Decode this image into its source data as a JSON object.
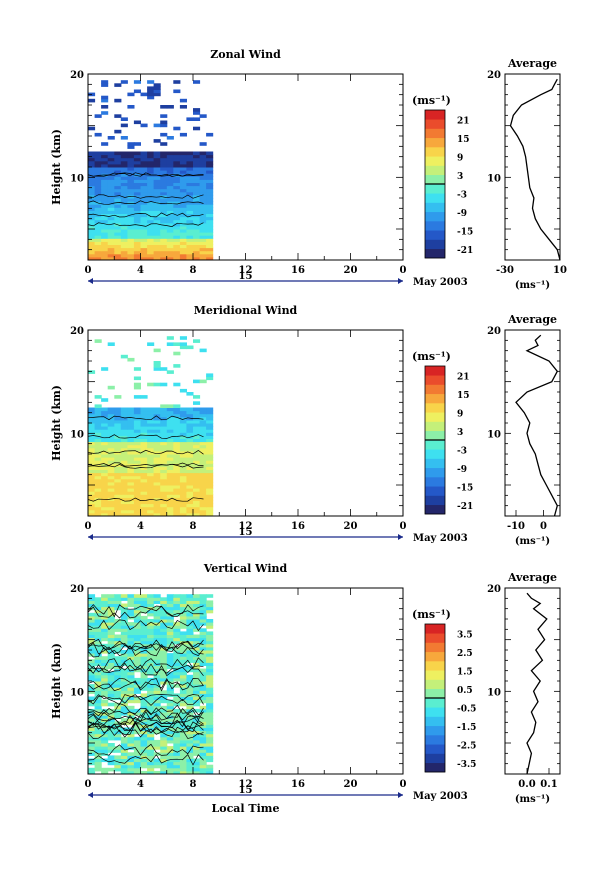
{
  "chart_data": [
    {
      "type": "heatmap",
      "title": "Zonal Wind",
      "ylabel": "Height (km)",
      "xlim": [
        0,
        24
      ],
      "ylim": [
        2,
        20
      ],
      "x_ticks": [
        "0",
        "4",
        "8",
        "12",
        "16",
        "20",
        "0"
      ],
      "y_ticks": [
        "10",
        "20"
      ],
      "date_axis": {
        "tick": "15",
        "label": "May 2003"
      },
      "colorbar": {
        "unit": "(ms⁻¹)",
        "ticks": [
          "21",
          "15",
          "9",
          "3",
          "-3",
          "-9",
          "-15",
          "-21"
        ],
        "min": -24,
        "max": 24
      },
      "data_time_range": [
        0,
        9.2
      ],
      "profile": {
        "title": "Average",
        "unit": "(ms⁻¹)",
        "xlim": [
          -30,
          10
        ],
        "x_ticks": [
          "-30",
          "10"
        ],
        "y_ticks": [
          "10",
          "20"
        ],
        "heights": [
          2,
          3,
          4,
          5,
          6,
          7,
          8,
          9,
          10,
          11,
          12,
          13,
          14,
          15,
          16,
          17,
          18,
          18.5,
          19,
          19.5
        ],
        "values": [
          10,
          8,
          2,
          -4,
          -8,
          -10,
          -9,
          -12,
          -13,
          -14,
          -15,
          -17,
          -21,
          -26,
          -24,
          -18,
          -4,
          4,
          6,
          8
        ]
      }
    },
    {
      "type": "heatmap",
      "title": "Meridional Wind",
      "ylabel": "Height (km)",
      "xlim": [
        0,
        24
      ],
      "ylim": [
        2,
        20
      ],
      "x_ticks": [
        "0",
        "4",
        "8",
        "12",
        "16",
        "20",
        "0"
      ],
      "y_ticks": [
        "10",
        "20"
      ],
      "date_axis": {
        "tick": "15",
        "label": "May 2003"
      },
      "colorbar": {
        "unit": "(ms⁻¹)",
        "ticks": [
          "21",
          "15",
          "9",
          "3",
          "-3",
          "-9",
          "-15",
          "-21"
        ],
        "min": -24,
        "max": 24
      },
      "data_time_range": [
        0,
        9.2
      ],
      "profile": {
        "title": "Average",
        "unit": "(ms⁻¹)",
        "xlim": [
          -14,
          6
        ],
        "x_ticks": [
          "-10",
          "0"
        ],
        "y_ticks": [
          "10",
          "20"
        ],
        "heights": [
          2,
          3,
          4,
          5,
          6,
          7,
          8,
          9,
          10,
          11,
          12,
          13,
          14,
          15,
          16,
          17,
          18,
          18.5,
          19,
          19.5
        ],
        "values": [
          4,
          5,
          3,
          1,
          -1,
          -2,
          -3,
          -5,
          -6,
          -5,
          -7,
          -10,
          -6,
          3,
          5,
          2,
          -6,
          -2,
          -3,
          -1
        ]
      }
    },
    {
      "type": "heatmap",
      "title": "Vertical Wind",
      "ylabel": "Height (km)",
      "xlabel": "Local Time",
      "xlim": [
        0,
        24
      ],
      "ylim": [
        2,
        20
      ],
      "x_ticks": [
        "0",
        "4",
        "8",
        "12",
        "16",
        "20",
        "0"
      ],
      "y_ticks": [
        "10",
        "20"
      ],
      "date_axis": {
        "tick": "15",
        "label": "May 2003"
      },
      "colorbar": {
        "unit": "(ms⁻¹)",
        "ticks": [
          "3.5",
          "2.5",
          "1.5",
          "0.5",
          "-0.5",
          "-1.5",
          "-2.5",
          "-3.5"
        ],
        "min": -4,
        "max": 4
      },
      "data_time_range": [
        0,
        9.2
      ],
      "profile": {
        "title": "Average",
        "unit": "(ms⁻¹)",
        "xlim": [
          -0.1,
          0.15
        ],
        "x_ticks": [
          "0.0",
          "0.1"
        ],
        "y_ticks": [
          "10",
          "20"
        ],
        "heights": [
          2,
          3,
          4,
          5,
          6,
          7,
          8,
          9,
          10,
          11,
          12,
          13,
          14,
          15,
          16,
          17,
          18,
          18.5,
          19,
          19.5
        ],
        "values": [
          0.0,
          0.01,
          0.02,
          0.0,
          0.03,
          0.04,
          0.02,
          0.05,
          0.03,
          0.06,
          0.02,
          0.07,
          0.04,
          0.08,
          0.05,
          0.09,
          0.03,
          0.06,
          0.02,
          0.0
        ]
      }
    }
  ]
}
